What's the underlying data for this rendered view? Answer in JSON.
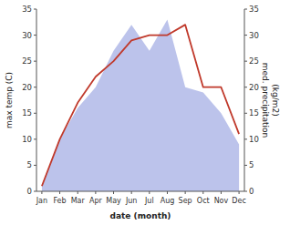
{
  "chart_data": {
    "type": "line",
    "xlabel": "date (month)",
    "ylabel": "max temp (C)",
    "y2label": "med. precipitation\n(kg/m2)",
    "categories": [
      "Jan",
      "Feb",
      "Mar",
      "Apr",
      "May",
      "Jun",
      "Jul",
      "Aug",
      "Sep",
      "Oct",
      "Nov",
      "Dec"
    ],
    "series": [
      {
        "type": "area",
        "axis": "y2",
        "color": "#b0b8e8",
        "values": [
          1,
          10,
          16,
          20,
          27,
          32,
          27,
          33,
          20,
          19,
          15,
          9
        ]
      },
      {
        "type": "line",
        "color": "#c0392b",
        "values": [
          1,
          10,
          17,
          22,
          25,
          29,
          30,
          30,
          32,
          20,
          20,
          11
        ]
      }
    ],
    "ylim": [
      0,
      35
    ],
    "yticks": [
      0,
      5,
      10,
      15,
      20,
      25,
      30,
      35
    ],
    "y2lim": [
      0,
      35
    ],
    "y2ticks": [
      0,
      5,
      10,
      15,
      20,
      25,
      30,
      35
    ],
    "grid": false
  }
}
